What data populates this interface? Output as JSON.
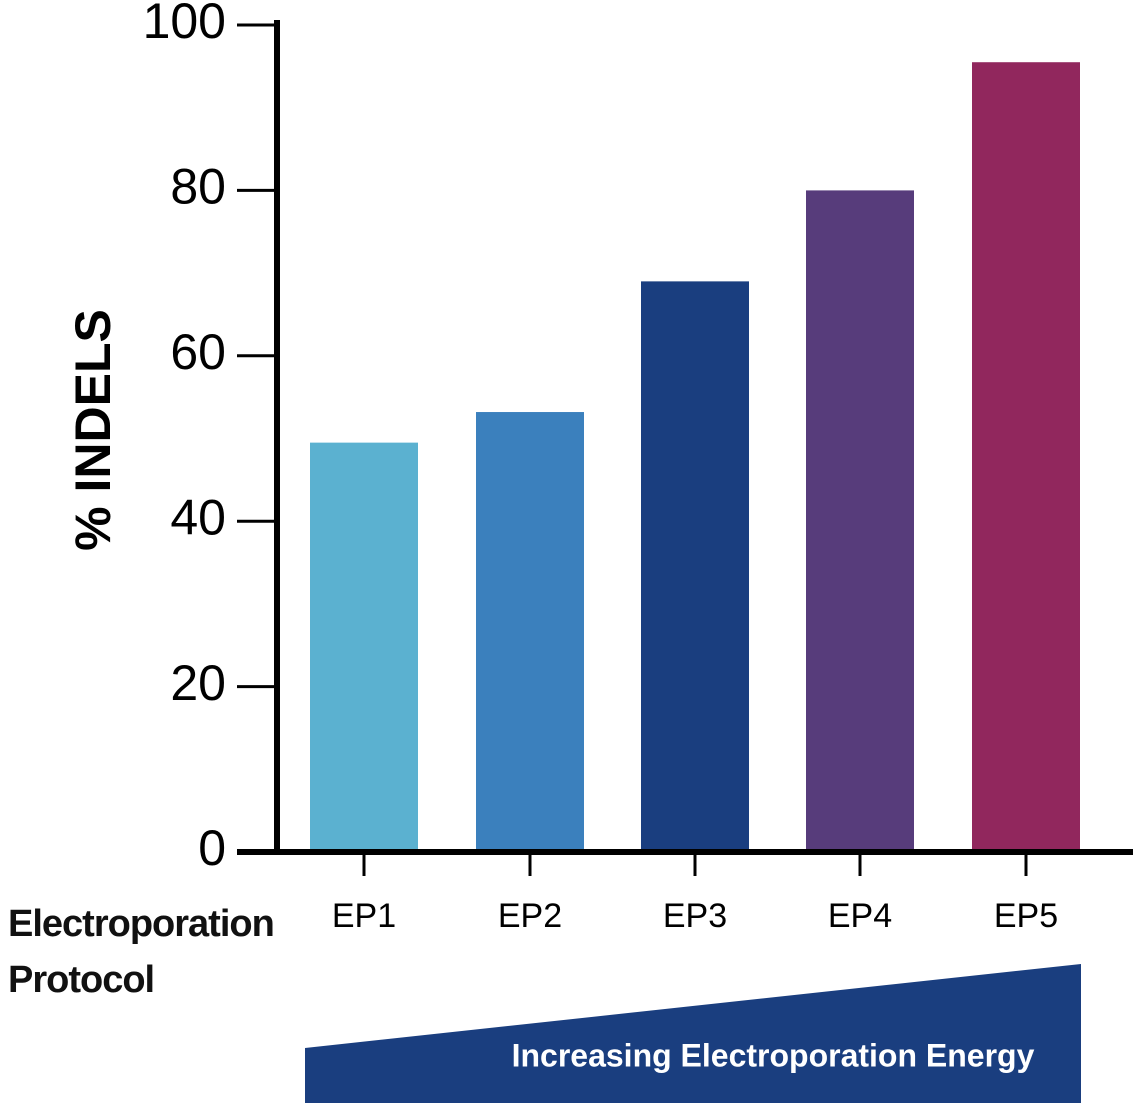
{
  "chart_data": {
    "type": "bar",
    "y_label": "% INDELS",
    "x_label": "Electroporation Protocol",
    "annotation": "Increasing Electroporation Energy",
    "categories": [
      "EP1",
      "EP2",
      "EP3",
      "EP4",
      "EP5"
    ],
    "values": [
      49.5,
      53.2,
      69,
      80,
      95.5
    ],
    "colors": [
      "#5bb1d0",
      "#3b80bd",
      "#1a3e7f",
      "#573c7b",
      "#91275d"
    ],
    "ylim": [
      0,
      100
    ],
    "yticks": [
      0,
      20,
      40,
      60,
      80,
      100
    ],
    "annotation_color": "#1a3e7f"
  }
}
